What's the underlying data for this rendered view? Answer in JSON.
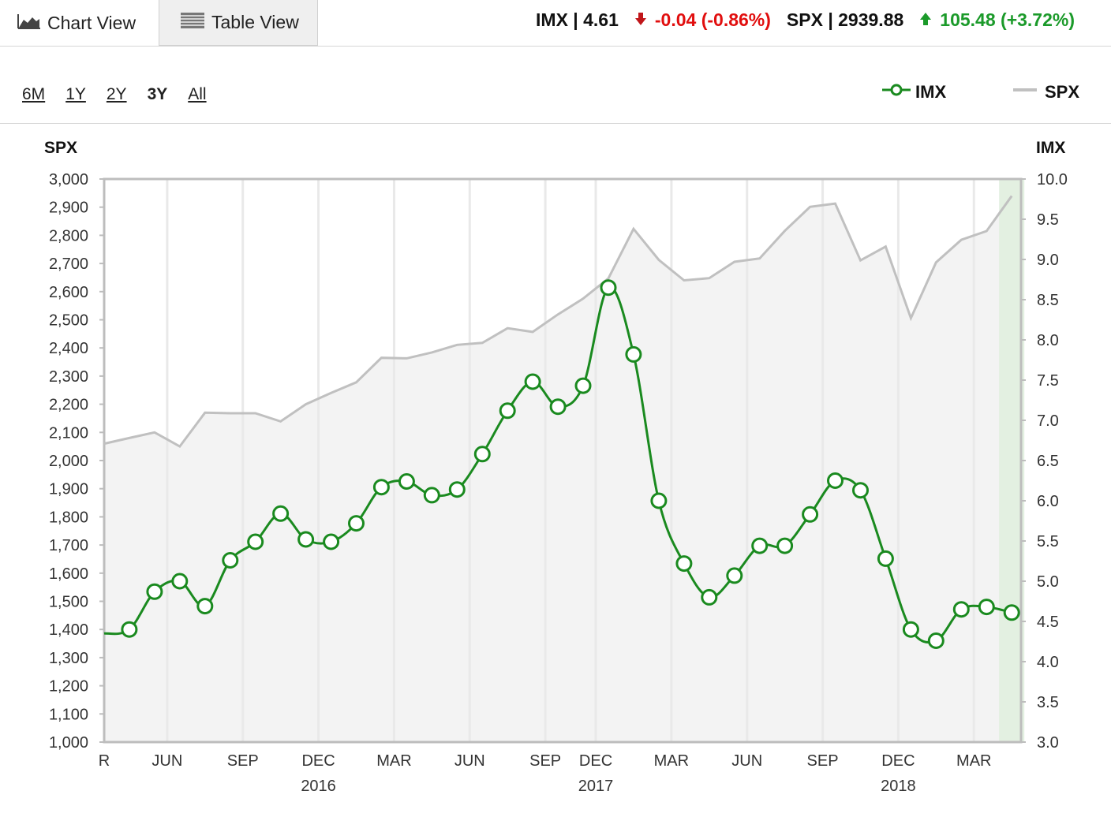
{
  "tabs": {
    "chart_view": "Chart View",
    "table_view": "Table View"
  },
  "quotes": {
    "imx": {
      "label": "IMX | 4.61",
      "change": "-0.04 (-0.86%)",
      "direction": "down"
    },
    "spx": {
      "label": "SPX | 2939.88",
      "change": "105.48 (+3.72%)",
      "direction": "up"
    }
  },
  "ranges": [
    {
      "label": "6M",
      "active": false
    },
    {
      "label": "1Y",
      "active": false
    },
    {
      "label": "2Y",
      "active": false
    },
    {
      "label": "3Y",
      "active": true
    },
    {
      "label": "All",
      "active": false
    }
  ],
  "legend": {
    "imx": "IMX",
    "spx": "SPX"
  },
  "colors": {
    "imx": "#1a8a1f",
    "spx": "#c0c0c0",
    "down": "#e10e0e",
    "up": "#1b9a2a",
    "area": "#f3f3f3",
    "highlight": "#e3f0e1"
  },
  "chart_data": {
    "type": "line",
    "left_axis": {
      "label": "SPX",
      "min": 1000,
      "max": 3000,
      "ticks": [
        "1,000",
        "1,100",
        "1,200",
        "1,300",
        "1,400",
        "1,500",
        "1,600",
        "1,700",
        "1,800",
        "1,900",
        "2,000",
        "2,100",
        "2,200",
        "2,300",
        "2,400",
        "2,500",
        "2,600",
        "2,700",
        "2,800",
        "2,900",
        "3,000"
      ]
    },
    "right_axis": {
      "label": "IMX",
      "min": 3.0,
      "max": 10.0,
      "ticks": [
        "3.0",
        "3.5",
        "4.0",
        "4.5",
        "5.0",
        "5.5",
        "6.0",
        "6.5",
        "7.0",
        "7.5",
        "8.0",
        "8.5",
        "9.0",
        "9.5",
        "10.0"
      ]
    },
    "month_labels": [
      {
        "idx": 0.0,
        "label": "R"
      },
      {
        "idx": 2.5,
        "label": "JUN"
      },
      {
        "idx": 5.5,
        "label": "SEP"
      },
      {
        "idx": 8.5,
        "label": "DEC"
      },
      {
        "idx": 11.5,
        "label": "MAR"
      },
      {
        "idx": 14.5,
        "label": "JUN"
      },
      {
        "idx": 17.5,
        "label": "SEP"
      },
      {
        "idx": 19.5,
        "label": "DEC"
      },
      {
        "idx": 22.5,
        "label": "MAR"
      },
      {
        "idx": 25.5,
        "label": "JUN"
      },
      {
        "idx": 28.5,
        "label": "SEP"
      },
      {
        "idx": 31.5,
        "label": "DEC"
      },
      {
        "idx": 34.5,
        "label": "MAR"
      }
    ],
    "year_labels": [
      {
        "idx": 8.5,
        "label": "2016"
      },
      {
        "idx": 19.5,
        "label": "2017"
      },
      {
        "idx": 31.5,
        "label": "2018"
      }
    ],
    "series": [
      {
        "name": "SPX",
        "axis": "left",
        "values": [
          2060,
          2080,
          2100,
          2050,
          2170,
          2168,
          2168,
          2139,
          2200,
          2240,
          2278,
          2365,
          2363,
          2384,
          2411,
          2418,
          2470,
          2457,
          2519,
          2575,
          2647,
          2823,
          2713,
          2640,
          2648,
          2706,
          2718,
          2816,
          2901,
          2913,
          2711,
          2760,
          2506,
          2704,
          2784,
          2815,
          2939.88
        ]
      },
      {
        "name": "IMX",
        "axis": "right",
        "values": [
          4.35,
          4.4,
          4.87,
          5.0,
          4.69,
          5.26,
          5.49,
          5.84,
          5.52,
          5.49,
          5.72,
          6.17,
          6.24,
          6.07,
          6.14,
          6.58,
          7.12,
          7.48,
          7.17,
          7.43,
          8.65,
          7.82,
          6.0,
          5.22,
          4.8,
          5.07,
          5.44,
          5.44,
          5.83,
          6.25,
          6.13,
          5.28,
          4.4,
          4.26,
          4.65,
          4.68,
          4.61
        ],
        "markers_from": 1
      }
    ]
  }
}
